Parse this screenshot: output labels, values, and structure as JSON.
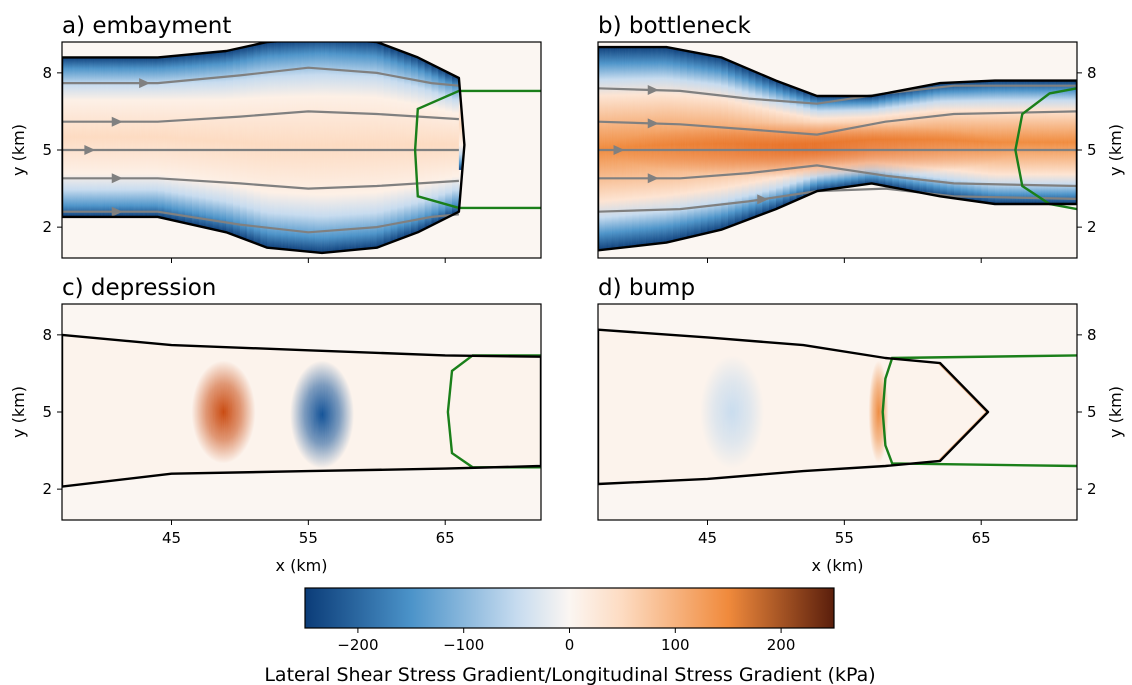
{
  "colorbar": {
    "label": "Lateral Shear Stress Gradient/Longitudinal Stress Gradient (kPa)",
    "range": [
      -250,
      250
    ],
    "ticks": [
      -200,
      -100,
      0,
      100,
      200
    ],
    "tick_labels": [
      "−200",
      "−100",
      "0",
      "100",
      "200"
    ],
    "colors": {
      "neg_end": "#0b3c78",
      "neg_mid": "#4b93c9",
      "neg_light": "#c6dbef",
      "zero": "#fbf6f2",
      "pos_light": "#fddbc1",
      "pos_mid": "#f08a3c",
      "pos_end": "#5a1e0c"
    }
  },
  "chart_data": [
    {
      "type": "heatmap",
      "panel": "a",
      "title": "a) embayment",
      "xlabel": "",
      "ylabel": "y (km)",
      "xlim": [
        37,
        72
      ],
      "ylim": [
        0.8,
        9.2
      ],
      "xticks": [
        45,
        55,
        65
      ],
      "yticks": [
        2,
        5,
        8
      ],
      "contours": {
        "ice_margin": [
          [
            37,
            8.6
          ],
          [
            44,
            8.6
          ],
          [
            49,
            8.85
          ],
          [
            52,
            9.2
          ],
          [
            56,
            9.35
          ],
          [
            60,
            9.2
          ],
          [
            63,
            8.6
          ],
          [
            66,
            7.8
          ],
          [
            66.4,
            5.2
          ],
          [
            66,
            2.6
          ],
          [
            63,
            1.8
          ],
          [
            60,
            1.2
          ],
          [
            56,
            1.0
          ],
          [
            52,
            1.2
          ],
          [
            49,
            1.8
          ],
          [
            44,
            2.4
          ],
          [
            37,
            2.4
          ]
        ],
        "grounding_line": [
          [
            72,
            7.3
          ],
          [
            66,
            7.3
          ],
          [
            63,
            6.6
          ],
          [
            62.8,
            5
          ],
          [
            63,
            3.2
          ],
          [
            66,
            2.75
          ],
          [
            72,
            2.75
          ]
        ]
      },
      "streamlines": [
        {
          "points": [
            [
              37,
              7.6
            ],
            [
              44,
              7.6
            ],
            [
              50,
              7.9
            ],
            [
              55,
              8.2
            ],
            [
              60,
              8.0
            ],
            [
              64,
              7.6
            ],
            [
              66,
              7.5
            ]
          ],
          "arrow_x": 43
        },
        {
          "points": [
            [
              37,
              6.1
            ],
            [
              44,
              6.1
            ],
            [
              50,
              6.3
            ],
            [
              55,
              6.5
            ],
            [
              60,
              6.4
            ],
            [
              66,
              6.2
            ]
          ],
          "arrow_x": 41
        },
        {
          "points": [
            [
              37,
              5
            ],
            [
              66,
              5
            ]
          ],
          "arrow_x": 39
        },
        {
          "points": [
            [
              37,
              3.9
            ],
            [
              44,
              3.9
            ],
            [
              50,
              3.7
            ],
            [
              55,
              3.5
            ],
            [
              60,
              3.6
            ],
            [
              66,
              3.8
            ]
          ],
          "arrow_x": 41
        },
        {
          "points": [
            [
              37,
              2.6
            ],
            [
              44,
              2.6
            ],
            [
              50,
              2.1
            ],
            [
              55,
              1.8
            ],
            [
              60,
              2.0
            ],
            [
              64,
              2.4
            ],
            [
              66,
              2.5
            ]
          ],
          "arrow_x": 41
        }
      ]
    },
    {
      "type": "heatmap",
      "panel": "b",
      "title": "b) bottleneck",
      "xlabel": "",
      "ylabel": "y (km)",
      "xlim": [
        37,
        72
      ],
      "ylim": [
        0.8,
        9.2
      ],
      "xticks": [
        45,
        55,
        65
      ],
      "yticks": [
        2,
        5,
        8
      ],
      "contours": {
        "ice_margin": [
          [
            37,
            9.0
          ],
          [
            42,
            9.0
          ],
          [
            46,
            8.6
          ],
          [
            50,
            7.7
          ],
          [
            53,
            7.1
          ],
          [
            57,
            7.1
          ],
          [
            62,
            7.6
          ],
          [
            66,
            7.7
          ],
          [
            72,
            7.7
          ],
          [
            72,
            2.9
          ],
          [
            66,
            2.9
          ],
          [
            62,
            3.2
          ],
          [
            57,
            3.7
          ],
          [
            53,
            3.4
          ],
          [
            50,
            2.7
          ],
          [
            46,
            1.9
          ],
          [
            42,
            1.4
          ],
          [
            37,
            1.1
          ]
        ],
        "grounding_line": [
          [
            72,
            7.4
          ],
          [
            70,
            7.2
          ],
          [
            68,
            6.4
          ],
          [
            67.5,
            5
          ],
          [
            68,
            3.6
          ],
          [
            70,
            2.9
          ],
          [
            72,
            2.7
          ]
        ]
      },
      "streamlines": [
        {
          "points": [
            [
              37,
              7.4
            ],
            [
              43,
              7.3
            ],
            [
              48,
              7.0
            ],
            [
              53,
              6.8
            ],
            [
              58,
              7.2
            ],
            [
              63,
              7.5
            ],
            [
              72,
              7.5
            ]
          ],
          "arrow_x": 41
        },
        {
          "points": [
            [
              37,
              6.1
            ],
            [
              43,
              6.0
            ],
            [
              48,
              5.8
            ],
            [
              53,
              5.6
            ],
            [
              58,
              6.1
            ],
            [
              63,
              6.4
            ],
            [
              72,
              6.5
            ]
          ],
          "arrow_x": 41
        },
        {
          "points": [
            [
              37,
              5
            ],
            [
              72,
              5
            ]
          ],
          "arrow_x": 38.5
        },
        {
          "points": [
            [
              37,
              3.9
            ],
            [
              43,
              3.9
            ],
            [
              48,
              4.1
            ],
            [
              53,
              4.4
            ],
            [
              58,
              4.0
            ],
            [
              63,
              3.7
            ],
            [
              72,
              3.6
            ]
          ],
          "arrow_x": 41
        },
        {
          "points": [
            [
              37,
              2.6
            ],
            [
              43,
              2.7
            ],
            [
              48,
              3.0
            ],
            [
              53,
              3.4
            ],
            [
              58,
              3.5
            ],
            [
              63,
              3.2
            ],
            [
              72,
              3.1
            ]
          ],
          "arrow_x": 49
        }
      ]
    },
    {
      "type": "heatmap",
      "panel": "c",
      "title": "c) depression",
      "xlabel": "x (km)",
      "ylabel": "y (km)",
      "xlim": [
        37,
        72
      ],
      "ylim": [
        0.8,
        9.2
      ],
      "xticks": [
        45,
        55,
        65
      ],
      "yticks": [
        2,
        5,
        8
      ],
      "contours": {
        "ice_margin": [
          [
            37,
            2.1
          ],
          [
            45,
            2.6
          ],
          [
            55,
            2.7
          ],
          [
            65,
            2.8
          ],
          [
            72,
            2.9
          ],
          [
            72,
            7.15
          ],
          [
            65,
            7.2
          ],
          [
            55,
            7.4
          ],
          [
            45,
            7.6
          ],
          [
            37,
            8.0
          ]
        ],
        "grounding_line": [
          [
            72,
            7.2
          ],
          [
            67,
            7.2
          ],
          [
            65.5,
            6.6
          ],
          [
            65.2,
            5
          ],
          [
            65.5,
            3.4
          ],
          [
            67,
            2.85
          ],
          [
            72,
            2.85
          ]
        ]
      },
      "features": [
        {
          "name": "positive-band",
          "x_center": 48.8,
          "y_range": [
            3.0,
            7.0
          ],
          "value": 180
        },
        {
          "name": "negative-band",
          "x_center": 56.0,
          "y_range": [
            2.8,
            7.0
          ],
          "value": -220
        }
      ]
    },
    {
      "type": "heatmap",
      "panel": "d",
      "title": "d) bump",
      "xlabel": "x (km)",
      "ylabel": "y (km)",
      "xlim": [
        37,
        72
      ],
      "ylim": [
        0.8,
        9.2
      ],
      "xticks": [
        45,
        55,
        65
      ],
      "yticks": [
        2,
        5,
        8
      ],
      "contours": {
        "ice_margin": [
          [
            37,
            8.2
          ],
          [
            45,
            7.9
          ],
          [
            52,
            7.6
          ],
          [
            58,
            7.1
          ],
          [
            62,
            6.9
          ],
          [
            65.5,
            5
          ],
          [
            62,
            3.1
          ],
          [
            58,
            2.9
          ],
          [
            52,
            2.7
          ],
          [
            45,
            2.4
          ],
          [
            37,
            2.2
          ]
        ],
        "grounding_line": [
          [
            72,
            7.2
          ],
          [
            58.5,
            7.1
          ],
          [
            58,
            6.3
          ],
          [
            57.8,
            5
          ],
          [
            58,
            3.7
          ],
          [
            58.5,
            3.0
          ],
          [
            72,
            2.9
          ]
        ]
      },
      "features": [
        {
          "name": "negative-band",
          "x_center": 46.8,
          "y_range": [
            2.8,
            7.2
          ],
          "value": -40
        },
        {
          "name": "positive-edge",
          "x_center": 57.5,
          "y_range": [
            3.0,
            7.0
          ],
          "value": 110
        }
      ]
    }
  ]
}
